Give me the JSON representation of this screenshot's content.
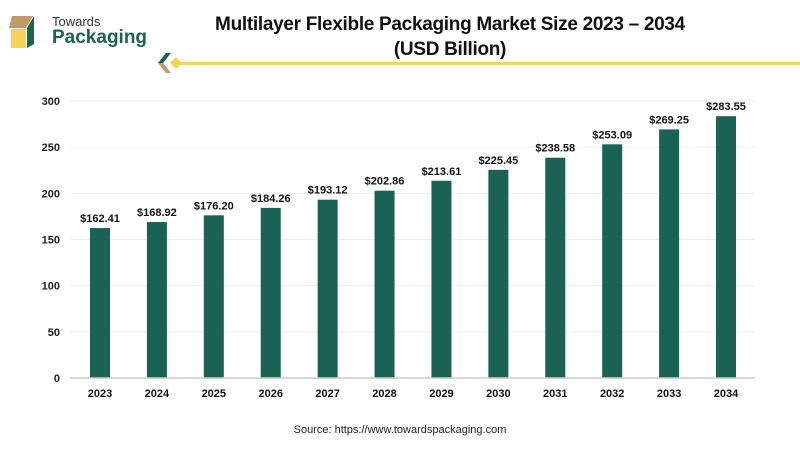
{
  "logo": {
    "line1": "Towards",
    "line2": "Packaging"
  },
  "title": "Multilayer Flexible Packaging Market Size 2023 – 2034",
  "subtitle": "(USD Billion)",
  "source": "Source: https://www.towardspackaging.com",
  "colors": {
    "bar": "#1a6354",
    "accent_line": "#f5d35a",
    "brand_green": "#1b6350",
    "brand_tan": "#c39a66"
  },
  "chart_data": {
    "type": "bar",
    "categories": [
      "2023",
      "2024",
      "2025",
      "2026",
      "2027",
      "2028",
      "2029",
      "2030",
      "2031",
      "2032",
      "2033",
      "2034"
    ],
    "values": [
      162.41,
      168.92,
      176.2,
      184.26,
      193.12,
      202.86,
      213.61,
      225.45,
      238.58,
      253.09,
      269.25,
      283.55
    ],
    "data_labels": [
      "$162.41",
      "$168.92",
      "$176.20",
      "$184.26",
      "$193.12",
      "$202.86",
      "$213.61",
      "$225.45",
      "$238.58",
      "$253.09",
      "$269.25",
      "$283.55"
    ],
    "title": "Multilayer Flexible Packaging Market Size 2023 – 2034 (USD Billion)",
    "xlabel": "",
    "ylabel": "",
    "ylim": [
      0,
      300
    ],
    "yticks": [
      0,
      50,
      100,
      150,
      200,
      250,
      300
    ],
    "grid": true,
    "legend": "none"
  }
}
